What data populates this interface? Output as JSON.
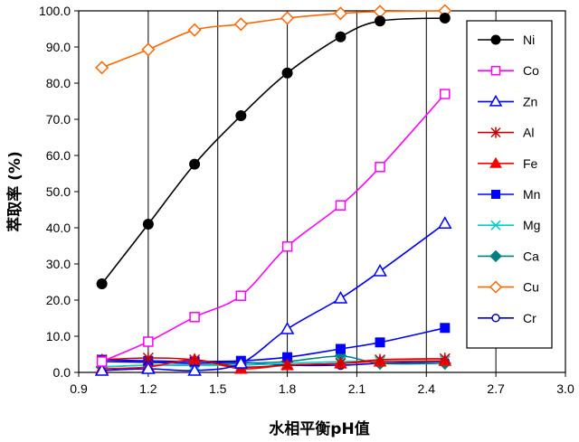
{
  "chart_data": {
    "type": "line",
    "xlabel": "水相平衡pH值",
    "ylabel": "萃取率 (%)",
    "xlim": [
      0.9,
      3.0
    ],
    "ylim": [
      0,
      100
    ],
    "x_ticks": [
      "0.9",
      "1.2",
      "1.5",
      "1.8",
      "2.1",
      "2.4",
      "2.7",
      "3.0"
    ],
    "y_ticks": [
      "0.0",
      "10.0",
      "20.0",
      "30.0",
      "40.0",
      "50.0",
      "60.0",
      "70.0",
      "80.0",
      "90.0",
      "100.0"
    ],
    "grid": "vertical",
    "legend_position": "right",
    "series": [
      {
        "name": "Ni",
        "color": "#000000",
        "marker": "circle-filled",
        "x": [
          1.0,
          1.2,
          1.4,
          1.6,
          1.8,
          2.03,
          2.2,
          2.48
        ],
        "y": [
          24.5,
          41.0,
          57.6,
          71.0,
          82.8,
          92.8,
          97.2,
          98.0
        ]
      },
      {
        "name": "Co",
        "color": "#ff00ff",
        "marker": "square-open",
        "x": [
          1.0,
          1.2,
          1.4,
          1.6,
          1.8,
          2.03,
          2.2,
          2.48
        ],
        "y": [
          3.0,
          8.5,
          15.3,
          21.2,
          34.8,
          46.2,
          56.8,
          77.0
        ]
      },
      {
        "name": "Zn",
        "color": "#0000ff",
        "marker": "triangle-open",
        "x": [
          1.0,
          1.2,
          1.4,
          1.6,
          1.8,
          2.03,
          2.2,
          2.48
        ],
        "y": [
          0.5,
          1.0,
          0.5,
          2.5,
          12.0,
          20.5,
          28.0,
          41.2
        ]
      },
      {
        "name": "Al",
        "color": "#cc0000",
        "marker": "asterisk",
        "x": [
          1.0,
          1.2,
          1.4,
          1.6,
          1.8,
          2.03,
          2.2,
          2.48
        ],
        "y": [
          3.5,
          4.0,
          3.5,
          1.5,
          2.0,
          2.5,
          3.5,
          3.8
        ]
      },
      {
        "name": "Fe",
        "color": "#ff0000",
        "marker": "triangle-filled",
        "x": [
          1.0,
          1.2,
          1.4,
          1.6,
          1.8,
          2.03,
          2.2,
          2.48
        ],
        "y": [
          1.0,
          1.5,
          3.5,
          1.0,
          2.0,
          2.5,
          3.0,
          3.2
        ]
      },
      {
        "name": "Mn",
        "color": "#0000ff",
        "marker": "square-filled",
        "x": [
          1.0,
          1.2,
          1.4,
          1.6,
          1.8,
          2.03,
          2.2,
          2.48
        ],
        "y": [
          3.5,
          3.2,
          3.0,
          3.2,
          4.2,
          6.5,
          8.3,
          12.3
        ]
      },
      {
        "name": "Mg",
        "color": "#00cccc",
        "marker": "x",
        "x": [
          1.0,
          1.2,
          1.4,
          1.6,
          1.8,
          2.03,
          2.2,
          2.48
        ],
        "y": [
          1.5,
          2.0,
          2.0,
          2.0,
          2.5,
          3.0,
          3.0,
          3.2
        ]
      },
      {
        "name": "Ca",
        "color": "#008080",
        "marker": "diamond-filled",
        "x": [
          1.0,
          1.2,
          1.4,
          1.6,
          1.8,
          2.03,
          2.2,
          2.48
        ],
        "y": [
          1.5,
          2.0,
          2.0,
          2.5,
          3.0,
          4.5,
          2.5,
          2.5
        ]
      },
      {
        "name": "Cu",
        "color": "#ff6600",
        "marker": "diamond-open",
        "x": [
          1.0,
          1.2,
          1.4,
          1.6,
          1.8,
          2.03,
          2.2,
          2.48
        ],
        "y": [
          84.3,
          89.3,
          94.7,
          96.3,
          98.0,
          99.3,
          99.8,
          100.0
        ]
      },
      {
        "name": "Cr",
        "color": "#0000cc",
        "marker": "circle-open",
        "x": [
          1.0,
          1.2,
          1.4,
          1.6,
          1.8,
          2.03,
          2.2,
          2.48
        ],
        "y": [
          3.0,
          2.8,
          2.5,
          2.8,
          2.0,
          2.0,
          2.5,
          3.0
        ]
      }
    ]
  }
}
